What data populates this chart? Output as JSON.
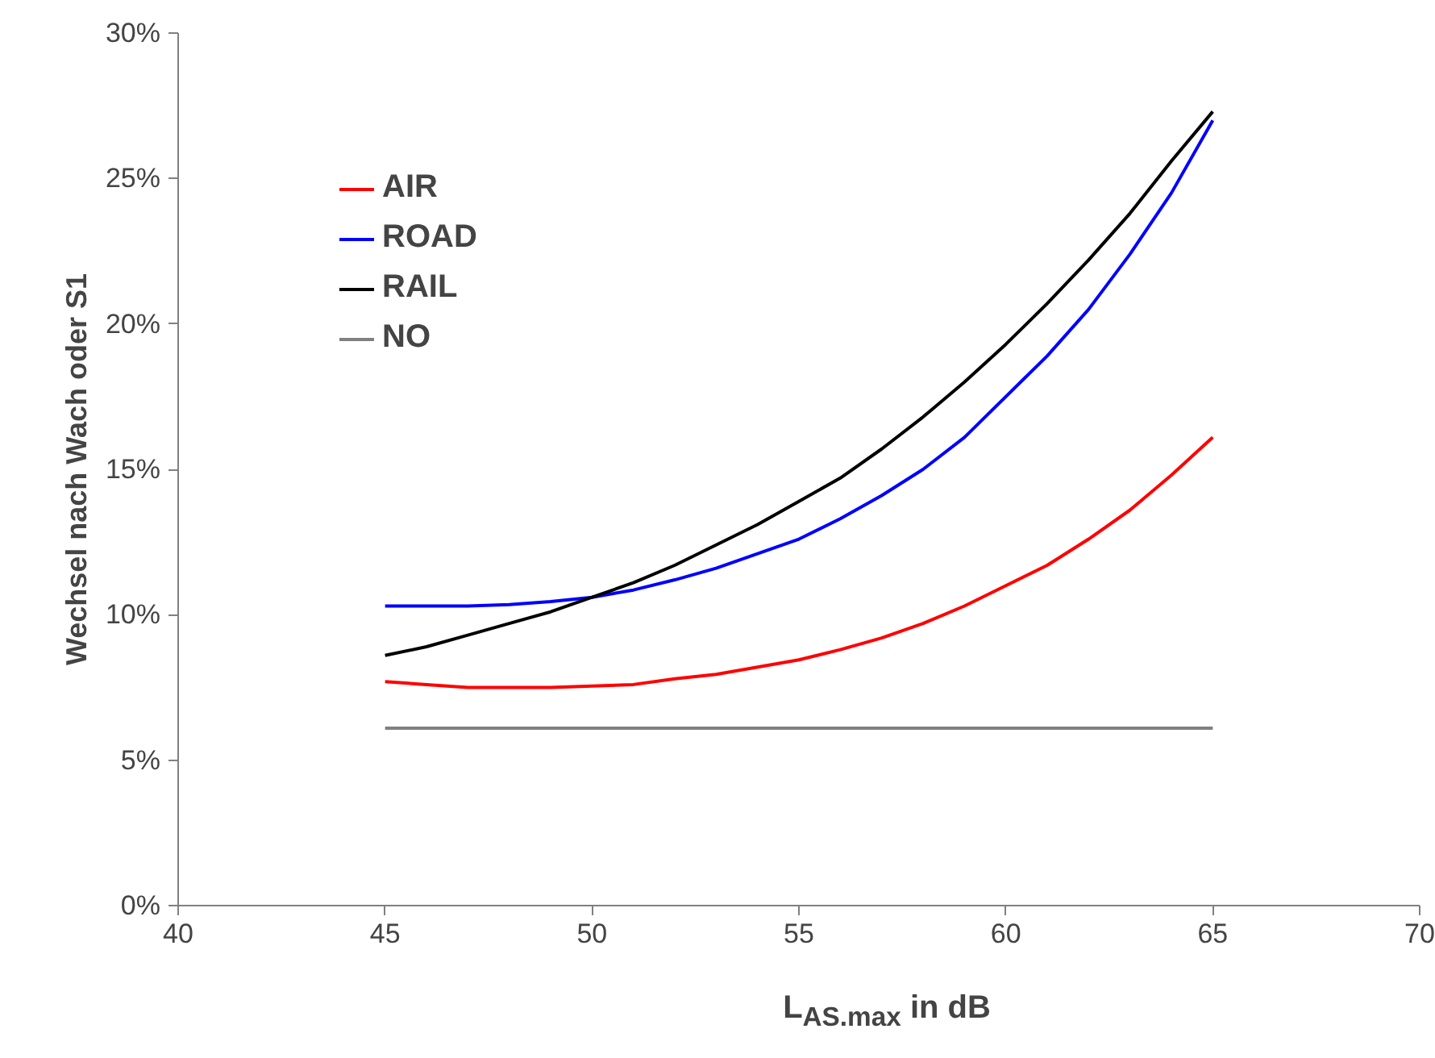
{
  "chart_data": {
    "type": "line",
    "xlabel": "L$_{AS.max}$ in dB",
    "ylabel": "Wechsel nach Wach oder S1",
    "x": [
      45,
      46,
      47,
      48,
      49,
      50,
      51,
      52,
      53,
      54,
      55,
      56,
      57,
      58,
      59,
      60,
      61,
      62,
      63,
      64,
      65
    ],
    "series": [
      {
        "name": "AIR",
        "color": "#ff0000",
        "values": [
          7.7,
          7.6,
          7.5,
          7.5,
          7.5,
          7.55,
          7.6,
          7.8,
          7.95,
          8.2,
          8.45,
          8.8,
          9.2,
          9.7,
          10.3,
          11.0,
          11.7,
          12.6,
          13.6,
          14.8,
          16.1
        ]
      },
      {
        "name": "ROAD",
        "color": "#0000ff",
        "values": [
          10.3,
          10.3,
          10.3,
          10.35,
          10.45,
          10.6,
          10.85,
          11.2,
          11.6,
          12.1,
          12.6,
          13.3,
          14.1,
          15.0,
          16.1,
          17.5,
          18.9,
          20.5,
          22.4,
          24.5,
          27.0
        ]
      },
      {
        "name": "RAIL",
        "color": "#000000",
        "values": [
          8.6,
          8.9,
          9.3,
          9.7,
          10.1,
          10.6,
          11.1,
          11.7,
          12.4,
          13.1,
          13.9,
          14.7,
          15.7,
          16.8,
          18.0,
          19.3,
          20.7,
          22.2,
          23.8,
          25.6,
          27.3
        ]
      },
      {
        "name": "NO",
        "color": "#808080",
        "values": [
          6.1,
          6.1,
          6.1,
          6.1,
          6.1,
          6.1,
          6.1,
          6.1,
          6.1,
          6.1,
          6.1,
          6.1,
          6.1,
          6.1,
          6.1,
          6.1,
          6.1,
          6.1,
          6.1,
          6.1,
          6.1
        ]
      }
    ],
    "xlim": [
      40,
      70
    ],
    "xticks": [
      40,
      45,
      50,
      55,
      60,
      65,
      70
    ],
    "ylim": [
      0,
      30
    ],
    "yticks": [
      {
        "value": 0,
        "label": "0%"
      },
      {
        "value": 5,
        "label": "5%"
      },
      {
        "value": 10,
        "label": "10%"
      },
      {
        "value": 15,
        "label": "15%"
      },
      {
        "value": 20,
        "label": "20%"
      },
      {
        "value": 25,
        "label": "25%"
      },
      {
        "value": 30,
        "label": "30%"
      }
    ],
    "legend": "top left",
    "grid": false,
    "line_style": "solid"
  }
}
